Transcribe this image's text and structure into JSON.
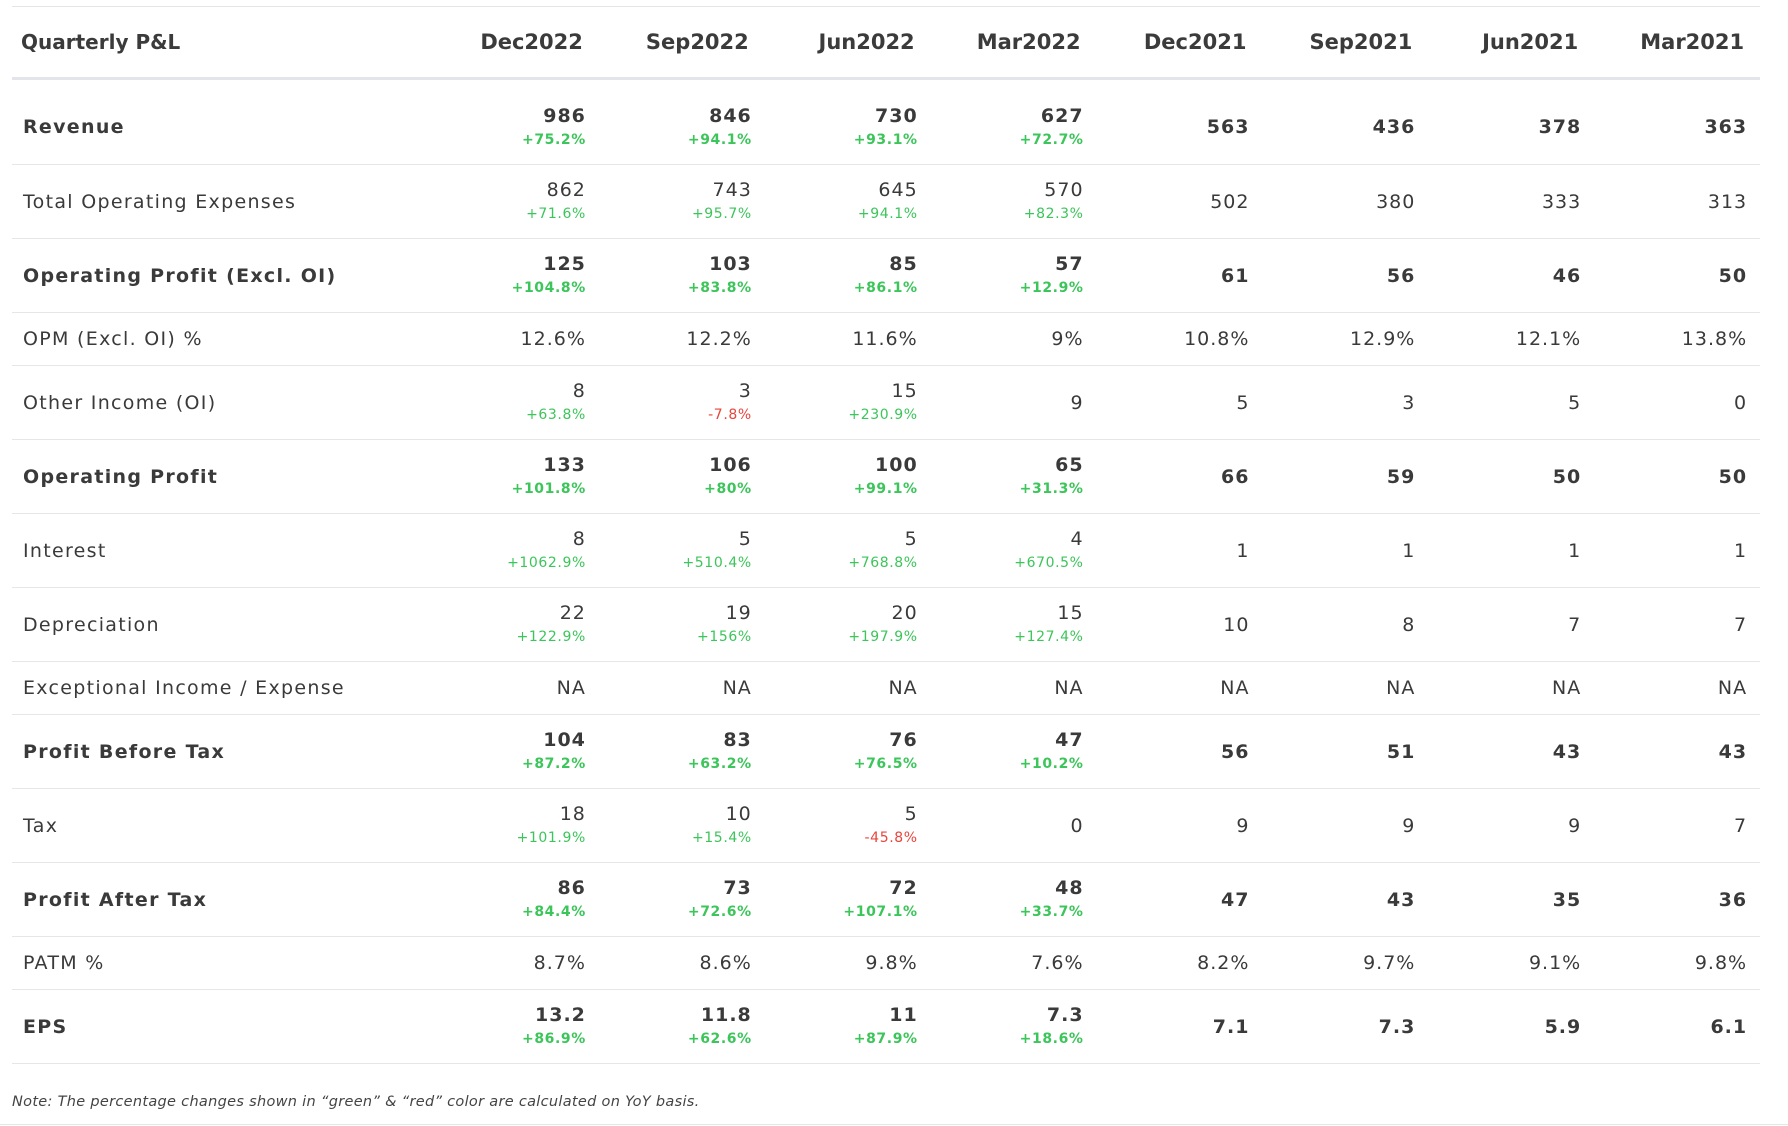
{
  "table": {
    "title": "Quarterly P&L",
    "periods": [
      "Dec2022",
      "Sep2022",
      "Jun2022",
      "Mar2022",
      "Dec2021",
      "Sep2021",
      "Jun2021",
      "Mar2021"
    ],
    "rows": [
      {
        "label": "Revenue",
        "bold": true,
        "values": [
          "986",
          "846",
          "730",
          "627",
          "563",
          "436",
          "378",
          "363"
        ],
        "changes": [
          "+75.2%",
          "+94.1%",
          "+93.1%",
          "+72.7%",
          "",
          "",
          "",
          ""
        ]
      },
      {
        "label": "Total Operating Expenses",
        "bold": false,
        "values": [
          "862",
          "743",
          "645",
          "570",
          "502",
          "380",
          "333",
          "313"
        ],
        "changes": [
          "+71.6%",
          "+95.7%",
          "+94.1%",
          "+82.3%",
          "",
          "",
          "",
          ""
        ]
      },
      {
        "label": "Operating Profit (Excl. OI)",
        "bold": true,
        "values": [
          "125",
          "103",
          "85",
          "57",
          "61",
          "56",
          "46",
          "50"
        ],
        "changes": [
          "+104.8%",
          "+83.8%",
          "+86.1%",
          "+12.9%",
          "",
          "",
          "",
          ""
        ]
      },
      {
        "label": "OPM (Excl. OI) %",
        "bold": false,
        "values": [
          "12.6%",
          "12.2%",
          "11.6%",
          "9%",
          "10.8%",
          "12.9%",
          "12.1%",
          "13.8%"
        ],
        "changes": [
          "",
          "",
          "",
          "",
          "",
          "",
          "",
          ""
        ]
      },
      {
        "label": "Other Income (OI)",
        "bold": false,
        "values": [
          "8",
          "3",
          "15",
          "9",
          "5",
          "3",
          "5",
          "0"
        ],
        "changes": [
          "+63.8%",
          "-7.8%",
          "+230.9%",
          "",
          "",
          "",
          "",
          ""
        ]
      },
      {
        "label": "Operating Profit",
        "bold": true,
        "values": [
          "133",
          "106",
          "100",
          "65",
          "66",
          "59",
          "50",
          "50"
        ],
        "changes": [
          "+101.8%",
          "+80%",
          "+99.1%",
          "+31.3%",
          "",
          "",
          "",
          ""
        ]
      },
      {
        "label": "Interest",
        "bold": false,
        "values": [
          "8",
          "5",
          "5",
          "4",
          "1",
          "1",
          "1",
          "1"
        ],
        "changes": [
          "+1062.9%",
          "+510.4%",
          "+768.8%",
          "+670.5%",
          "",
          "",
          "",
          ""
        ]
      },
      {
        "label": "Depreciation",
        "bold": false,
        "values": [
          "22",
          "19",
          "20",
          "15",
          "10",
          "8",
          "7",
          "7"
        ],
        "changes": [
          "+122.9%",
          "+156%",
          "+197.9%",
          "+127.4%",
          "",
          "",
          "",
          ""
        ]
      },
      {
        "label": "Exceptional Income / Expense",
        "bold": false,
        "values": [
          "NA",
          "NA",
          "NA",
          "NA",
          "NA",
          "NA",
          "NA",
          "NA"
        ],
        "changes": [
          "",
          "",
          "",
          "",
          "",
          "",
          "",
          ""
        ]
      },
      {
        "label": "Profit Before Tax",
        "bold": true,
        "values": [
          "104",
          "83",
          "76",
          "47",
          "56",
          "51",
          "43",
          "43"
        ],
        "changes": [
          "+87.2%",
          "+63.2%",
          "+76.5%",
          "+10.2%",
          "",
          "",
          "",
          ""
        ]
      },
      {
        "label": "Tax",
        "bold": false,
        "values": [
          "18",
          "10",
          "5",
          "0",
          "9",
          "9",
          "9",
          "7"
        ],
        "changes": [
          "+101.9%",
          "+15.4%",
          "-45.8%",
          "",
          "",
          "",
          "",
          ""
        ]
      },
      {
        "label": "Profit After Tax",
        "bold": true,
        "values": [
          "86",
          "73",
          "72",
          "48",
          "47",
          "43",
          "35",
          "36"
        ],
        "changes": [
          "+84.4%",
          "+72.6%",
          "+107.1%",
          "+33.7%",
          "",
          "",
          "",
          ""
        ]
      },
      {
        "label": "PATM %",
        "bold": false,
        "values": [
          "8.7%",
          "8.6%",
          "9.8%",
          "7.6%",
          "8.2%",
          "9.7%",
          "9.1%",
          "9.8%"
        ],
        "changes": [
          "",
          "",
          "",
          "",
          "",
          "",
          "",
          ""
        ]
      },
      {
        "label": "EPS",
        "bold": true,
        "values": [
          "13.2",
          "11.8",
          "11",
          "7.3",
          "7.1",
          "7.3",
          "5.9",
          "6.1"
        ],
        "changes": [
          "+86.9%",
          "+62.6%",
          "+87.9%",
          "+18.6%",
          "",
          "",
          "",
          ""
        ]
      }
    ]
  },
  "colors": {
    "positive": "#3cc55a",
    "negative": "#e8453c"
  },
  "note": "Note: The percentage changes shown in “green” & “red” color are calculated on YoY basis."
}
